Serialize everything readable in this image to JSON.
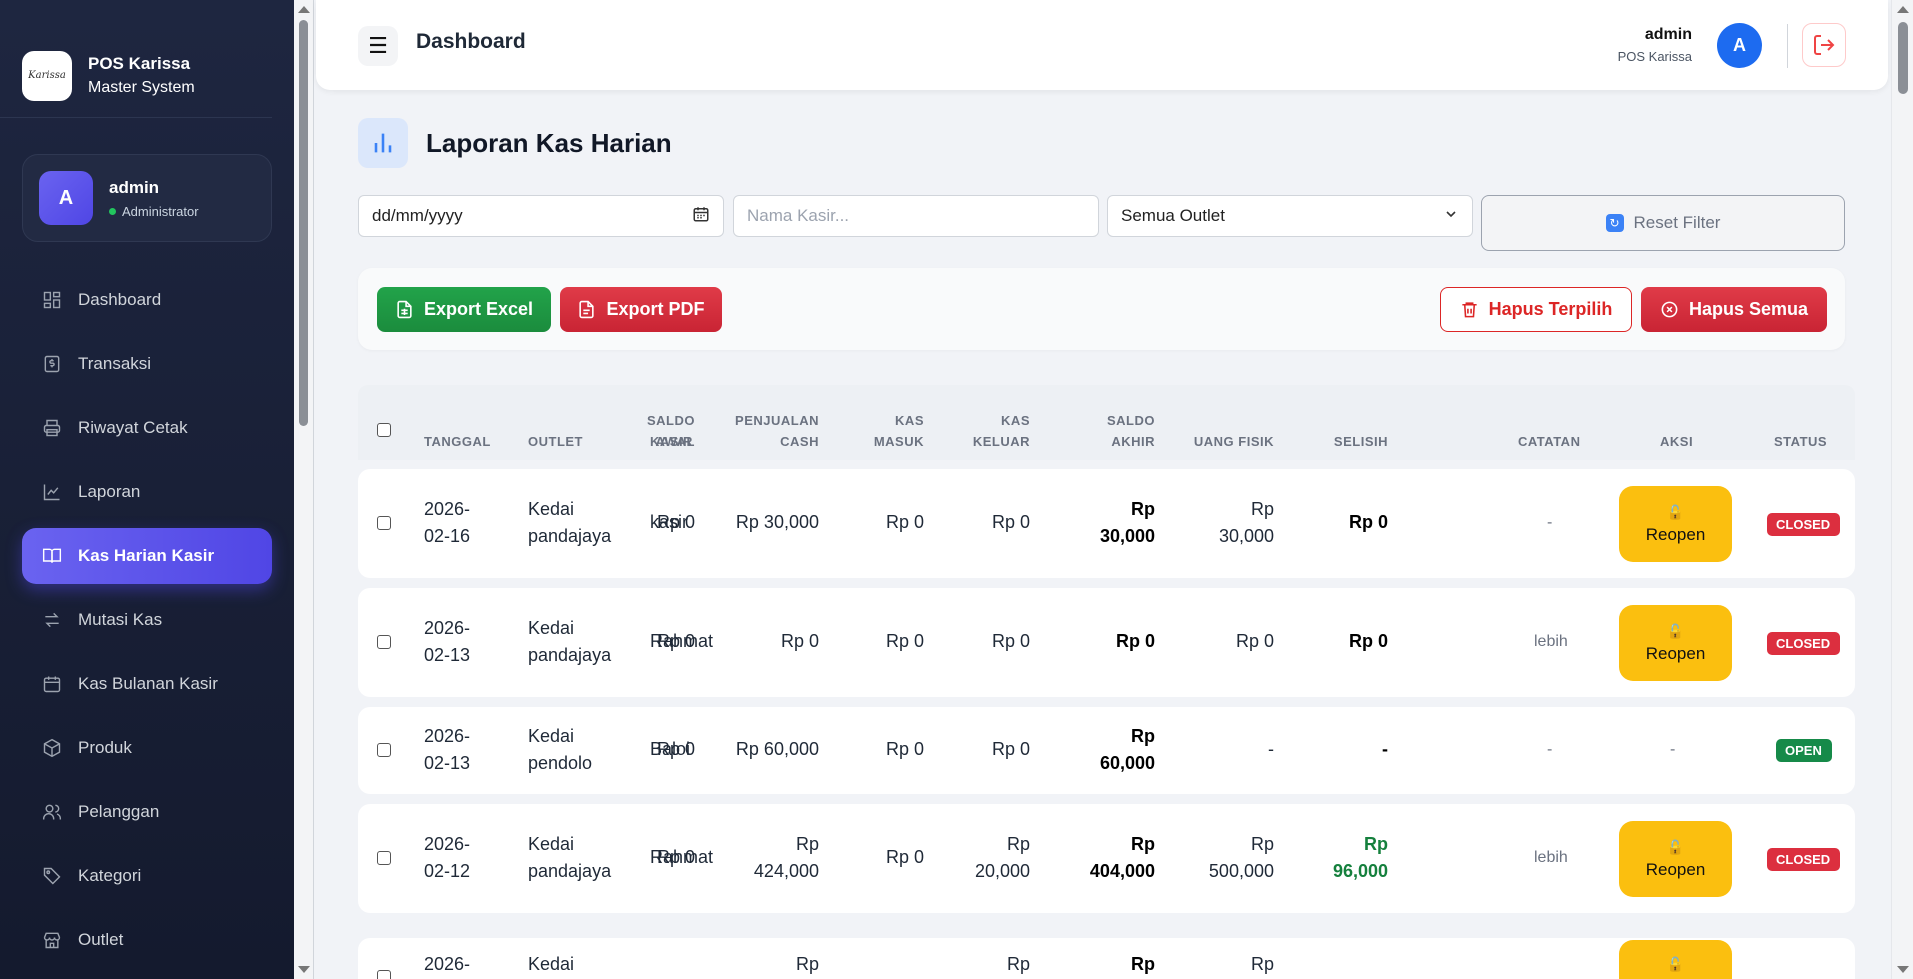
{
  "brand": {
    "logo_text": "Karissa",
    "title": "POS Karissa",
    "subtitle": "Master System"
  },
  "user_card": {
    "initial": "A",
    "name": "admin",
    "role": "Administrator"
  },
  "sidebar": {
    "items": [
      {
        "label": "Dashboard",
        "icon": "grid-icon"
      },
      {
        "label": "Transaksi",
        "icon": "receipt-dollar-icon"
      },
      {
        "label": "Riwayat Cetak",
        "icon": "printer-icon"
      },
      {
        "label": "Laporan",
        "icon": "line-chart-icon"
      },
      {
        "label": "Kas Harian Kasir",
        "icon": "book-open-icon",
        "active": true
      },
      {
        "label": "Mutasi Kas",
        "icon": "arrows-swap-icon"
      },
      {
        "label": "Kas Bulanan Kasir",
        "icon": "calendar-icon"
      },
      {
        "label": "Produk",
        "icon": "box-icon"
      },
      {
        "label": "Pelanggan",
        "icon": "users-icon"
      },
      {
        "label": "Kategori",
        "icon": "tag-icon"
      },
      {
        "label": "Outlet",
        "icon": "store-icon"
      }
    ]
  },
  "topbar": {
    "title": "Dashboard",
    "user_name": "admin",
    "user_sub": "POS Karissa",
    "avatar_initial": "A"
  },
  "page": {
    "title": "Laporan Kas Harian"
  },
  "filters": {
    "date_placeholder": "dd/mm/yyyy",
    "kasir_placeholder": "Nama Kasir...",
    "outlet_selected": "Semua Outlet",
    "reset_label": "Reset Filter"
  },
  "actions": {
    "export_excel": "Export Excel",
    "export_pdf": "Export PDF",
    "hapus_terpilih": "Hapus Terpilih",
    "hapus_semua": "Hapus Semua"
  },
  "table": {
    "headers": {
      "tanggal": "TANGGAL",
      "outlet": "OUTLET",
      "kasir": "KASIR",
      "saldo_awal_1": "SALDO",
      "saldo_awal_2": "AWAL",
      "penjualan_1": "PENJUALAN",
      "penjualan_2": "CASH",
      "kas_masuk_1": "KAS",
      "kas_masuk_2": "MASUK",
      "kas_keluar_1": "KAS",
      "kas_keluar_2": "KELUAR",
      "saldo_akhir_1": "SALDO",
      "saldo_akhir_2": "AKHIR",
      "uang_fisik": "UANG FISIK",
      "selisih": "SELISIH",
      "catatan": "CATATAN",
      "aksi": "AKSI",
      "status": "STATUS"
    },
    "reopen_label": "Reopen",
    "rows": [
      {
        "tanggal_1": "2026-",
        "tanggal_2": "02-16",
        "outlet_1": "Kedai",
        "outlet_2": "pandajaya",
        "kasir": "kasir",
        "saldo_awal": "Rp 0",
        "penjualan_1": "Rp 30,000",
        "penjualan_2": "",
        "kas_masuk": "Rp 0",
        "kas_keluar_1": "Rp 0",
        "kas_keluar_2": "",
        "saldo_akhir_1": "Rp",
        "saldo_akhir_2": "30,000",
        "uang_fisik_1": "Rp",
        "uang_fisik_2": "30,000",
        "selisih_1": "Rp 0",
        "selisih_2": "",
        "catatan": "-",
        "aksi": "Reopen",
        "status": "CLOSED"
      },
      {
        "tanggal_1": "2026-",
        "tanggal_2": "02-13",
        "outlet_1": "Kedai",
        "outlet_2": "pandajaya",
        "kasir": "Rahmat",
        "saldo_awal": "Rp 0",
        "penjualan_1": "Rp 0",
        "penjualan_2": "",
        "kas_masuk": "Rp 0",
        "kas_keluar_1": "Rp 0",
        "kas_keluar_2": "",
        "saldo_akhir_1": "Rp 0",
        "saldo_akhir_2": "",
        "uang_fisik_1": "Rp 0",
        "uang_fisik_2": "",
        "selisih_1": "Rp 0",
        "selisih_2": "",
        "catatan": "lebih",
        "aksi": "Reopen",
        "status": "CLOSED"
      },
      {
        "tanggal_1": "2026-",
        "tanggal_2": "02-13",
        "outlet_1": "Kedai",
        "outlet_2": "pendolo",
        "kasir": "Baloi",
        "saldo_awal": "Rp 0",
        "penjualan_1": "Rp 60,000",
        "penjualan_2": "",
        "kas_masuk": "Rp 0",
        "kas_keluar_1": "Rp 0",
        "kas_keluar_2": "",
        "saldo_akhir_1": "Rp",
        "saldo_akhir_2": "60,000",
        "uang_fisik_1": "-",
        "uang_fisik_2": "",
        "selisih_1": "-",
        "selisih_2": "",
        "catatan": "-",
        "aksi": "-",
        "status": "OPEN"
      },
      {
        "tanggal_1": "2026-",
        "tanggal_2": "02-12",
        "outlet_1": "Kedai",
        "outlet_2": "pandajaya",
        "kasir": "Rahmat",
        "saldo_awal": "Rp 0",
        "penjualan_1": "Rp",
        "penjualan_2": "424,000",
        "kas_masuk": "Rp 0",
        "kas_keluar_1": "Rp",
        "kas_keluar_2": "20,000",
        "saldo_akhir_1": "Rp",
        "saldo_akhir_2": "404,000",
        "uang_fisik_1": "Rp",
        "uang_fisik_2": "500,000",
        "selisih_1": "Rp",
        "selisih_2": "96,000",
        "catatan": "lebih",
        "aksi": "Reopen",
        "status": "CLOSED"
      },
      {
        "tanggal_1": "2026-",
        "outlet_1": "Kedai",
        "penjualan_1": "Rp",
        "kas_keluar_1": "Rp",
        "saldo_akhir_1": "Rp",
        "uang_fisik_1": "Rp"
      }
    ]
  },
  "colors": {
    "accent": "#5046e5",
    "sidebar_bg": "#1a2038",
    "excel": "#1b8c3d",
    "danger": "#dc2f3f",
    "warning": "#fbbf0f",
    "open": "#168a49"
  }
}
